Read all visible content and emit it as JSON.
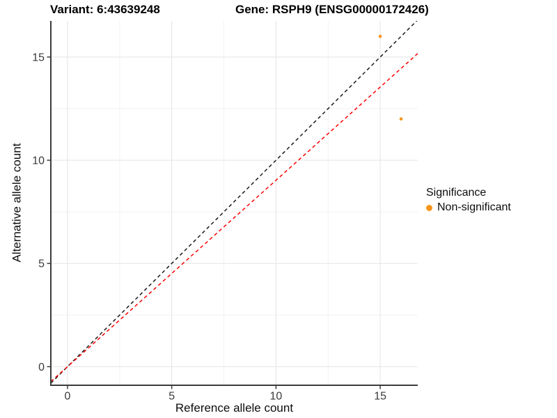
{
  "chart_data": {
    "type": "scatter",
    "title_left": "Variant: 6:43639248",
    "title_right": "Gene: RSPH9 (ENSG00000172426)",
    "xlabel": "Reference allele count",
    "ylabel": "Alternative allele count",
    "xlim": [
      -0.8,
      16.8
    ],
    "ylim": [
      -0.9,
      16.75
    ],
    "x_ticks": [
      0,
      5,
      10,
      15
    ],
    "y_ticks": [
      0,
      5,
      10,
      15
    ],
    "x_minor": [
      2.5,
      7.5,
      12.5
    ],
    "y_minor": [
      2.5,
      7.5,
      12.5
    ],
    "grid": true,
    "points": [
      {
        "x": 15,
        "y": 16,
        "series": "Non-significant"
      },
      {
        "x": 16,
        "y": 12,
        "series": "Non-significant"
      }
    ],
    "lines": [
      {
        "name": "identity",
        "slope": 1,
        "intercept": 0,
        "color": "#1a1a1a",
        "style": "dashed"
      },
      {
        "name": "expected",
        "slope": 0.903,
        "intercept": 0,
        "color": "#ff0000",
        "style": "dashed"
      }
    ],
    "legend": {
      "position": "right",
      "title": "Significance",
      "items": [
        {
          "label": "Non-significant",
          "color": "#F7941D"
        }
      ]
    },
    "colors": {
      "point": "#F7941D",
      "grid_major": "#e4e4e4",
      "grid_minor": "#f2f2f2",
      "axis_line": "#3c3c3c",
      "tick_mark": "#3c3c3c"
    }
  }
}
